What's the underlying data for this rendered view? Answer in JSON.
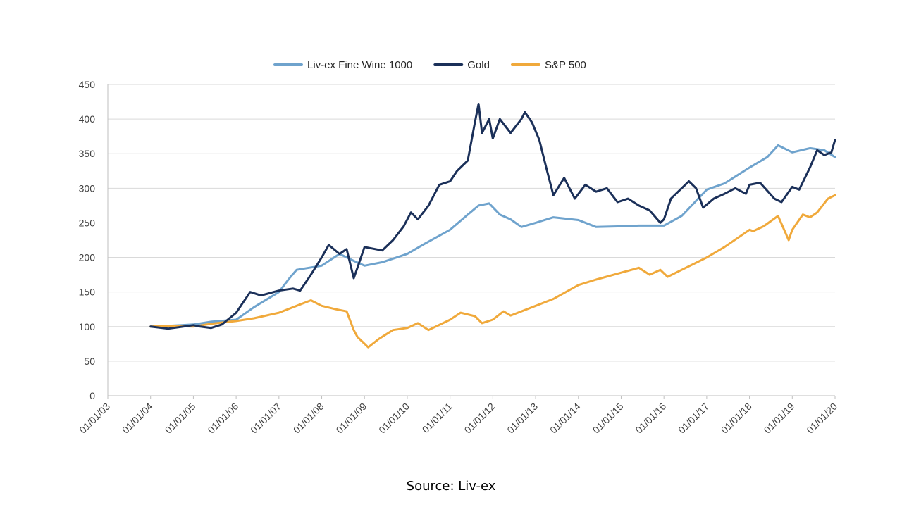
{
  "chart_data": {
    "type": "line",
    "title": "",
    "xlabel": "",
    "ylabel": "",
    "ylim": [
      0,
      450
    ],
    "yticks": [
      0,
      50,
      100,
      150,
      200,
      250,
      300,
      350,
      400,
      450
    ],
    "xticks": [
      "01/01/03",
      "01/01/04",
      "01/01/05",
      "01/01/06",
      "01/01/07",
      "01/01/08",
      "01/01/09",
      "01/01/10",
      "01/01/11",
      "01/01/12",
      "01/01/13",
      "01/01/14",
      "01/01/15",
      "01/01/16",
      "01/01/17",
      "01/01/18",
      "01/01/19",
      "01/01/20"
    ],
    "grid": true,
    "legend_position": "top-center",
    "series": [
      {
        "name": "Liv-ex Fine Wine 1000",
        "color": "#6fa3cd",
        "points": [
          [
            "2004-01-01",
            100
          ],
          [
            "2004-06-01",
            101
          ],
          [
            "2005-01-01",
            103
          ],
          [
            "2005-06-01",
            107
          ],
          [
            "2006-01-01",
            110
          ],
          [
            "2006-06-01",
            128
          ],
          [
            "2007-01-01",
            150
          ],
          [
            "2007-04-01",
            170
          ],
          [
            "2007-06-01",
            182
          ],
          [
            "2008-01-01",
            188
          ],
          [
            "2008-06-01",
            205
          ],
          [
            "2008-10-01",
            195
          ],
          [
            "2009-01-01",
            188
          ],
          [
            "2009-06-01",
            193
          ],
          [
            "2010-01-01",
            205
          ],
          [
            "2010-06-01",
            220
          ],
          [
            "2011-01-01",
            240
          ],
          [
            "2011-06-01",
            262
          ],
          [
            "2011-09-01",
            275
          ],
          [
            "2011-12-01",
            278
          ],
          [
            "2012-03-01",
            262
          ],
          [
            "2012-06-01",
            255
          ],
          [
            "2012-09-01",
            244
          ],
          [
            "2013-01-01",
            250
          ],
          [
            "2013-06-01",
            258
          ],
          [
            "2014-01-01",
            254
          ],
          [
            "2014-06-01",
            244
          ],
          [
            "2015-01-01",
            245
          ],
          [
            "2015-06-01",
            246
          ],
          [
            "2016-01-01",
            246
          ],
          [
            "2016-06-01",
            260
          ],
          [
            "2017-01-01",
            298
          ],
          [
            "2017-06-01",
            307
          ],
          [
            "2018-01-01",
            330
          ],
          [
            "2018-06-01",
            345
          ],
          [
            "2018-09-01",
            362
          ],
          [
            "2019-01-01",
            352
          ],
          [
            "2019-06-01",
            358
          ],
          [
            "2019-10-01",
            355
          ],
          [
            "2020-01-01",
            345
          ]
        ]
      },
      {
        "name": "Gold",
        "color": "#1b3059",
        "points": [
          [
            "2004-01-01",
            100
          ],
          [
            "2004-06-01",
            97
          ],
          [
            "2005-01-01",
            102
          ],
          [
            "2005-03-01",
            100
          ],
          [
            "2005-06-01",
            98
          ],
          [
            "2005-09-01",
            103
          ],
          [
            "2006-01-01",
            120
          ],
          [
            "2006-03-01",
            135
          ],
          [
            "2006-05-01",
            150
          ],
          [
            "2006-08-01",
            145
          ],
          [
            "2007-01-01",
            152
          ],
          [
            "2007-05-01",
            155
          ],
          [
            "2007-07-01",
            152
          ],
          [
            "2007-10-01",
            175
          ],
          [
            "2008-01-01",
            200
          ],
          [
            "2008-03-01",
            218
          ],
          [
            "2008-06-01",
            205
          ],
          [
            "2008-08-01",
            212
          ],
          [
            "2008-10-01",
            170
          ],
          [
            "2008-11-01",
            185
          ],
          [
            "2009-01-01",
            215
          ],
          [
            "2009-06-01",
            210
          ],
          [
            "2009-09-01",
            225
          ],
          [
            "2009-12-01",
            245
          ],
          [
            "2010-02-01",
            265
          ],
          [
            "2010-04-01",
            255
          ],
          [
            "2010-07-01",
            275
          ],
          [
            "2010-10-01",
            305
          ],
          [
            "2011-01-01",
            310
          ],
          [
            "2011-03-01",
            325
          ],
          [
            "2011-06-01",
            340
          ],
          [
            "2011-08-01",
            395
          ],
          [
            "2011-09-01",
            422
          ],
          [
            "2011-10-01",
            380
          ],
          [
            "2011-12-01",
            400
          ],
          [
            "2012-01-01",
            372
          ],
          [
            "2012-03-01",
            400
          ],
          [
            "2012-06-01",
            380
          ],
          [
            "2012-09-01",
            400
          ],
          [
            "2012-10-01",
            410
          ],
          [
            "2012-12-01",
            395
          ],
          [
            "2013-02-01",
            370
          ],
          [
            "2013-04-01",
            330
          ],
          [
            "2013-06-01",
            290
          ],
          [
            "2013-09-01",
            315
          ],
          [
            "2013-12-01",
            285
          ],
          [
            "2014-03-01",
            305
          ],
          [
            "2014-06-01",
            295
          ],
          [
            "2014-09-01",
            300
          ],
          [
            "2014-12-01",
            280
          ],
          [
            "2015-03-01",
            285
          ],
          [
            "2015-06-01",
            275
          ],
          [
            "2015-09-01",
            268
          ],
          [
            "2015-12-01",
            250
          ],
          [
            "2016-01-01",
            255
          ],
          [
            "2016-03-01",
            285
          ],
          [
            "2016-06-01",
            300
          ],
          [
            "2016-08-01",
            310
          ],
          [
            "2016-10-01",
            300
          ],
          [
            "2016-12-01",
            272
          ],
          [
            "2017-03-01",
            285
          ],
          [
            "2017-06-01",
            292
          ],
          [
            "2017-09-01",
            300
          ],
          [
            "2017-12-01",
            292
          ],
          [
            "2018-01-01",
            305
          ],
          [
            "2018-04-01",
            308
          ],
          [
            "2018-08-01",
            285
          ],
          [
            "2018-10-01",
            280
          ],
          [
            "2019-01-01",
            302
          ],
          [
            "2019-03-01",
            298
          ],
          [
            "2019-06-01",
            330
          ],
          [
            "2019-08-01",
            355
          ],
          [
            "2019-10-01",
            348
          ],
          [
            "2019-12-01",
            352
          ],
          [
            "2020-01-01",
            370
          ]
        ]
      },
      {
        "name": "S&P 500",
        "color": "#f0a93b",
        "points": [
          [
            "2004-01-01",
            100
          ],
          [
            "2004-06-01",
            101
          ],
          [
            "2005-01-01",
            100
          ],
          [
            "2005-06-01",
            104
          ],
          [
            "2006-01-01",
            108
          ],
          [
            "2006-06-01",
            112
          ],
          [
            "2007-01-01",
            120
          ],
          [
            "2007-06-01",
            130
          ],
          [
            "2007-10-01",
            138
          ],
          [
            "2008-01-01",
            130
          ],
          [
            "2008-05-01",
            125
          ],
          [
            "2008-08-01",
            122
          ],
          [
            "2008-10-01",
            95
          ],
          [
            "2008-11-01",
            85
          ],
          [
            "2009-02-01",
            70
          ],
          [
            "2009-05-01",
            82
          ],
          [
            "2009-09-01",
            95
          ],
          [
            "2010-01-01",
            98
          ],
          [
            "2010-04-01",
            105
          ],
          [
            "2010-07-01",
            95
          ],
          [
            "2011-01-01",
            110
          ],
          [
            "2011-04-01",
            120
          ],
          [
            "2011-08-01",
            115
          ],
          [
            "2011-10-01",
            105
          ],
          [
            "2012-01-01",
            110
          ],
          [
            "2012-04-01",
            122
          ],
          [
            "2012-06-01",
            116
          ],
          [
            "2013-01-01",
            130
          ],
          [
            "2013-06-01",
            140
          ],
          [
            "2014-01-01",
            160
          ],
          [
            "2014-06-01",
            168
          ],
          [
            "2015-01-01",
            178
          ],
          [
            "2015-06-01",
            185
          ],
          [
            "2015-09-01",
            175
          ],
          [
            "2015-12-01",
            182
          ],
          [
            "2016-02-01",
            172
          ],
          [
            "2016-06-01",
            182
          ],
          [
            "2017-01-01",
            200
          ],
          [
            "2017-06-01",
            215
          ],
          [
            "2018-01-01",
            240
          ],
          [
            "2018-02-01",
            238
          ],
          [
            "2018-05-01",
            245
          ],
          [
            "2018-09-01",
            260
          ],
          [
            "2018-12-01",
            225
          ],
          [
            "2019-01-01",
            240
          ],
          [
            "2019-04-01",
            262
          ],
          [
            "2019-06-01",
            258
          ],
          [
            "2019-08-01",
            265
          ],
          [
            "2019-11-01",
            285
          ],
          [
            "2020-01-01",
            290
          ]
        ]
      }
    ]
  },
  "footer": {
    "source": "Source: Liv-ex"
  }
}
